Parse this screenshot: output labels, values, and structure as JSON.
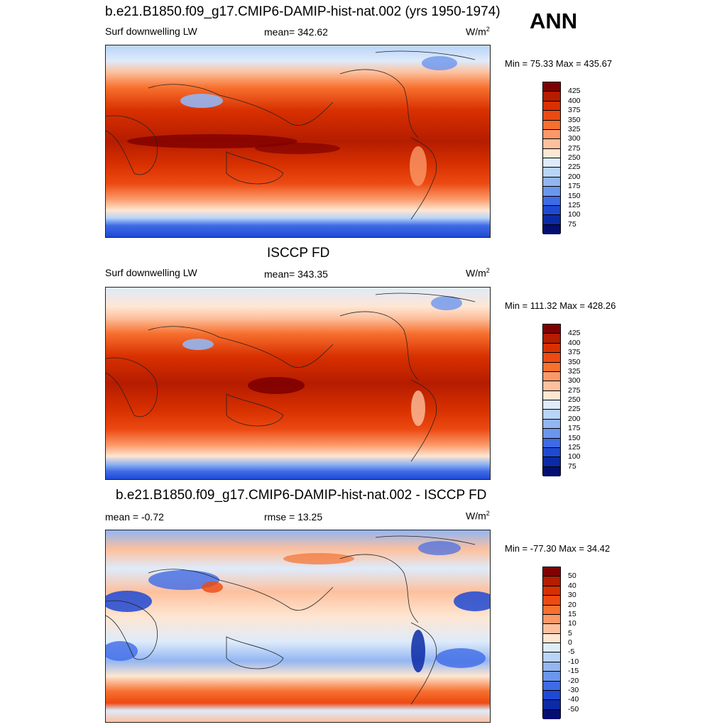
{
  "season": "ANN",
  "panels": [
    {
      "title": "b.e21.B1850.f09_g17.CMIP6-DAMIP-hist-nat.002 (yrs 1950-1974)",
      "left_label": "Surf downwelling LW",
      "center_label": "mean= 342.62",
      "units_base": "W/m",
      "units_exp": "2",
      "minmax": "Min =  75.33 Max = 435.67",
      "colorbar_labels": [
        "425",
        "400",
        "375",
        "350",
        "325",
        "300",
        "275",
        "250",
        "225",
        "200",
        "175",
        "150",
        "125",
        "100",
        "75"
      ],
      "colorbar_colors": [
        "#7f0000",
        "#b51c00",
        "#d83000",
        "#ec4a12",
        "#f7702e",
        "#fb9868",
        "#fdc09e",
        "#fee6d2",
        "#deebfb",
        "#b9d4f8",
        "#93b6f2",
        "#6b96ee",
        "#3e6be6",
        "#1f49d4",
        "#0b2aa6",
        "#040e70"
      ]
    },
    {
      "title": "ISCCP FD",
      "left_label": "Surf downwelling LW",
      "center_label": "mean= 343.35",
      "units_base": "W/m",
      "units_exp": "2",
      "minmax": "Min = 111.32 Max = 428.26",
      "colorbar_labels": [
        "425",
        "400",
        "375",
        "350",
        "325",
        "300",
        "275",
        "250",
        "225",
        "200",
        "175",
        "150",
        "125",
        "100",
        "75"
      ],
      "colorbar_colors": [
        "#7f0000",
        "#b51c00",
        "#d83000",
        "#ec4a12",
        "#f7702e",
        "#fb9868",
        "#fdc09e",
        "#fee6d2",
        "#deebfb",
        "#b9d4f8",
        "#93b6f2",
        "#6b96ee",
        "#3e6be6",
        "#1f49d4",
        "#0b2aa6",
        "#040e70"
      ]
    },
    {
      "title": "b.e21.B1850.f09_g17.CMIP6-DAMIP-hist-nat.002 - ISCCP FD",
      "left_label": "mean =  -0.72",
      "center_label": "rmse =  13.25",
      "units_base": "W/m",
      "units_exp": "2",
      "minmax": "Min = -77.30 Max =  34.42",
      "colorbar_labels": [
        "50",
        "40",
        "30",
        "20",
        "15",
        "10",
        "5",
        "0",
        "-5",
        "-10",
        "-15",
        "-20",
        "-30",
        "-40",
        "-50"
      ],
      "colorbar_colors": [
        "#7f0000",
        "#b51c00",
        "#d83000",
        "#ec4a12",
        "#f7702e",
        "#fb9868",
        "#fdc09e",
        "#fee6d2",
        "#deebfb",
        "#b9d4f8",
        "#93b6f2",
        "#6b96ee",
        "#3e6be6",
        "#1f49d4",
        "#0b2aa6",
        "#040e70"
      ]
    }
  ]
}
